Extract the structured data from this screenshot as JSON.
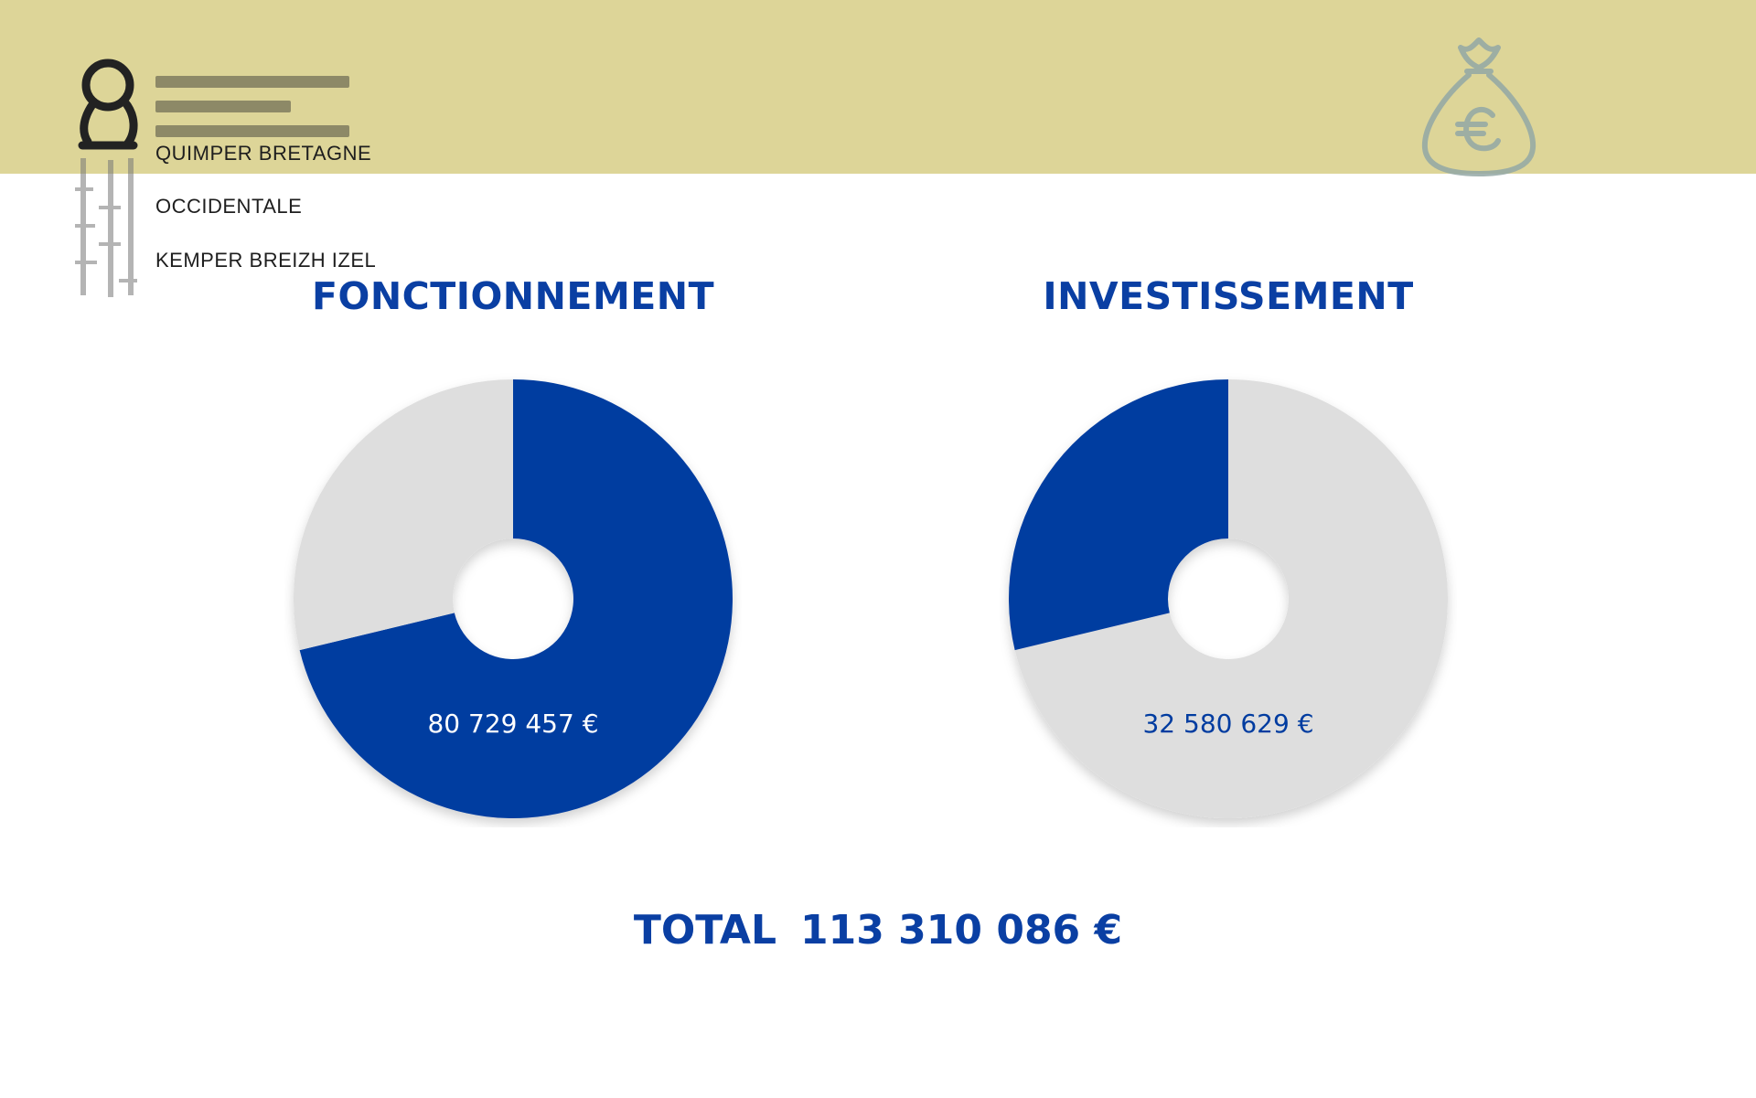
{
  "logo": {
    "lines": [
      "QUIMPER BRETAGNE",
      "OCCIDENTALE",
      "KEMPER BREIZH IZEL"
    ],
    "icon": "quimper-bretagne-logo-mark"
  },
  "header": {
    "band_color": "#ddd598",
    "icon": "euro-money-bag-icon"
  },
  "colors": {
    "primary": "#003ca0",
    "remainder": "#dedede",
    "title": "#0a3fa3"
  },
  "chart_data": [
    {
      "type": "pie",
      "title": "FONCTIONNEMENT",
      "donut": true,
      "labels": [
        "FONCTIONNEMENT",
        "INVESTISSEMENT"
      ],
      "values": [
        80729457,
        32580629
      ],
      "highlighted": "FONCTIONNEMENT",
      "value_label": "80 729 457  €"
    },
    {
      "type": "pie",
      "title": "INVESTISSEMENT",
      "donut": true,
      "labels": [
        "FONCTIONNEMENT",
        "INVESTISSEMENT"
      ],
      "values": [
        80729457,
        32580629
      ],
      "highlighted": "INVESTISSEMENT",
      "value_label": "32 580 629 €"
    }
  ],
  "total": {
    "label": "TOTAL",
    "value": "113 310 086 €"
  }
}
